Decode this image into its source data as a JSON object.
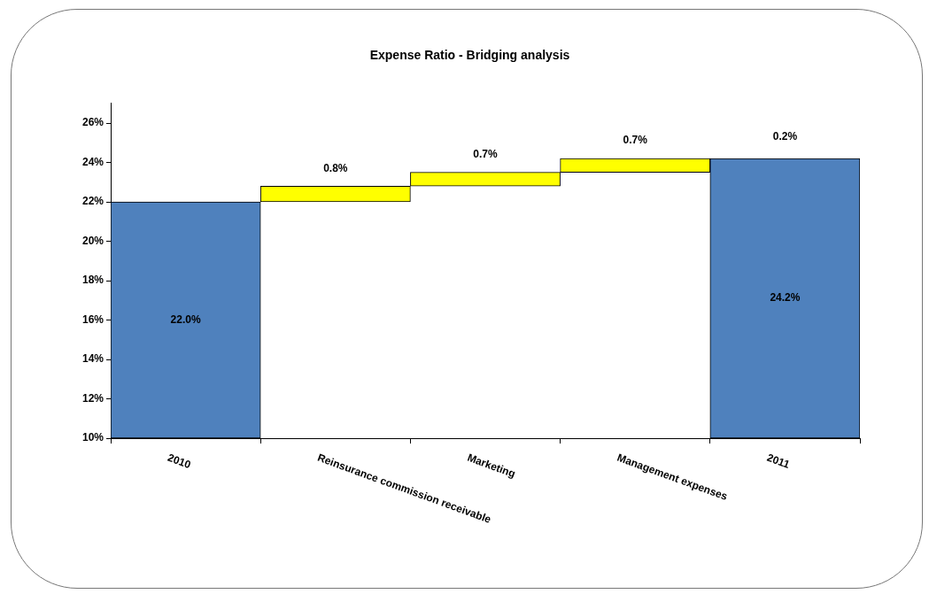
{
  "chart_data": {
    "type": "bar",
    "title": "Expense Ratio - Bridging analysis",
    "categories": [
      "2010",
      "Reinsurance commission receivable",
      "Marketing",
      "Management expenses",
      "2011"
    ],
    "values": [
      12,
      0.8,
      0.7,
      0.7,
      14.2
    ],
    "base": [
      10,
      22,
      22.8,
      23.5,
      10
    ],
    "colors": [
      "#4f81bd",
      "#ffff00",
      "#ffff00",
      "#ffff00",
      "#4f81bd"
    ],
    "value_labels": [
      "22.0%",
      "0.8%",
      "0.7%",
      "0.7%",
      "24.2%"
    ],
    "annotations": [
      {
        "text": "0.2%",
        "x": "2011",
        "y": 24.2
      }
    ],
    "ylim": [
      10,
      27
    ],
    "yticks": [
      {
        "value": 10,
        "label": "10%"
      },
      {
        "value": 12,
        "label": "12%"
      },
      {
        "value": 14,
        "label": "14%"
      },
      {
        "value": 16,
        "label": "16%"
      },
      {
        "value": 18,
        "label": "18%"
      },
      {
        "value": 20,
        "label": "20%"
      },
      {
        "value": 22,
        "label": "22%"
      },
      {
        "value": 24,
        "label": "24%"
      },
      {
        "value": 26,
        "label": "26%"
      }
    ],
    "grid": false,
    "legend": false
  }
}
